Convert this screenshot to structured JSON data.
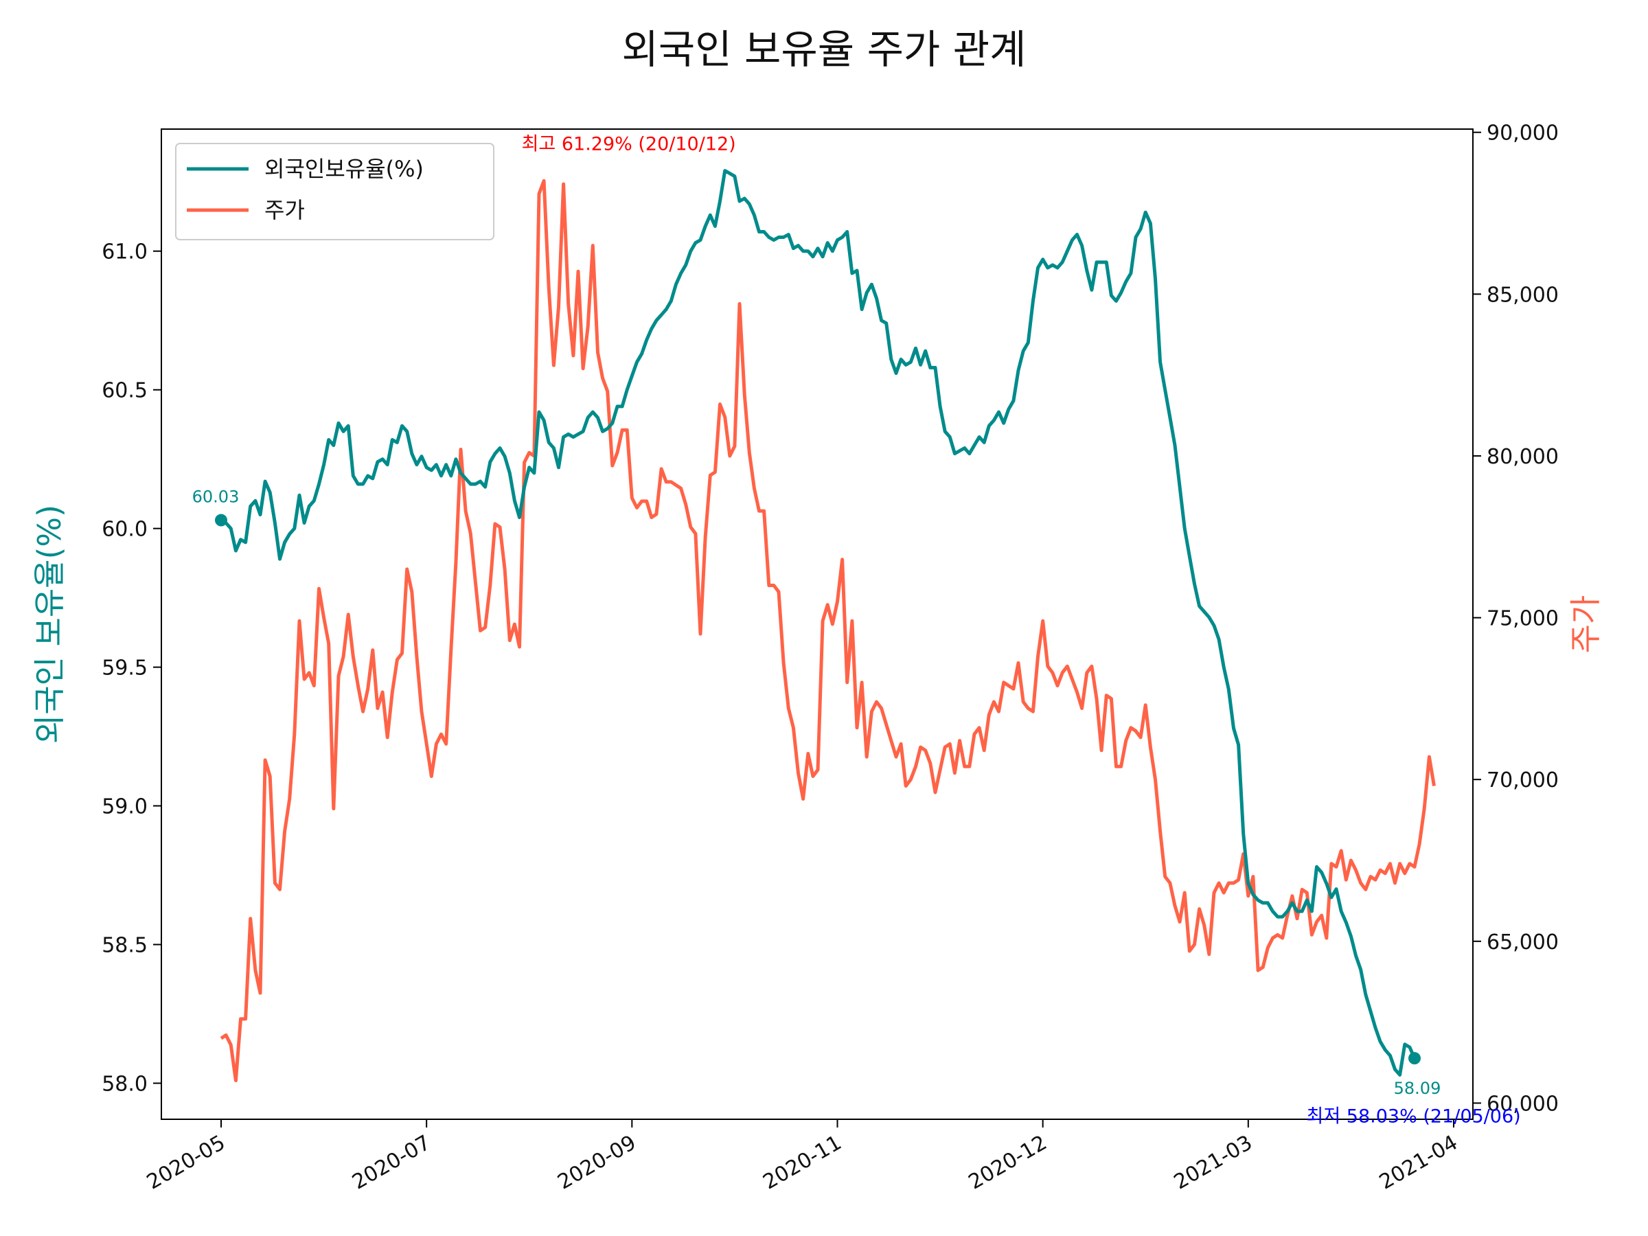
{
  "chart_data": {
    "type": "line",
    "title": "외국인 보유율 주가 관계",
    "xlabel": "",
    "ylabel_left": "외국인 보유율(%)",
    "ylabel_right": "주가",
    "x_tick_labels": [
      "2020-05",
      "2020-07",
      "2020-09",
      "2020-11",
      "2020-12",
      "2021-03",
      "2021-04"
    ],
    "y_left_ticks": [
      "58.0",
      "58.5",
      "59.0",
      "59.5",
      "60.0",
      "60.5",
      "61.0"
    ],
    "y_right_ticks": [
      "60,000",
      "65,000",
      "70,000",
      "75,000",
      "80,000",
      "85,000",
      "90,000"
    ],
    "ylim_left": [
      57.87,
      61.44
    ],
    "ylim_right": [
      59500,
      90100
    ],
    "legend_position": "top-left",
    "series": [
      {
        "name": "외국인보유율(%)",
        "axis": "left",
        "color": "#008B8B",
        "values": [
          60.03,
          60.02,
          60.0,
          59.92,
          59.96,
          59.95,
          60.08,
          60.1,
          60.05,
          60.17,
          60.13,
          60.02,
          59.89,
          59.95,
          59.98,
          60.0,
          60.12,
          60.02,
          60.08,
          60.1,
          60.16,
          60.23,
          60.32,
          60.3,
          60.38,
          60.35,
          60.37,
          60.19,
          60.16,
          60.16,
          60.19,
          60.18,
          60.24,
          60.25,
          60.23,
          60.32,
          60.31,
          60.37,
          60.35,
          60.27,
          60.23,
          60.26,
          60.22,
          60.21,
          60.23,
          60.19,
          60.23,
          60.19,
          60.25,
          60.2,
          60.18,
          60.16,
          60.16,
          60.17,
          60.15,
          60.24,
          60.27,
          60.29,
          60.26,
          60.2,
          60.1,
          60.04,
          60.15,
          60.22,
          60.2,
          60.42,
          60.39,
          60.31,
          60.29,
          60.22,
          60.33,
          60.34,
          60.33,
          60.34,
          60.35,
          60.4,
          60.42,
          60.4,
          60.35,
          60.36,
          60.38,
          60.44,
          60.44,
          60.5,
          60.55,
          60.6,
          60.63,
          60.68,
          60.72,
          60.75,
          60.77,
          60.79,
          60.82,
          60.88,
          60.92,
          60.95,
          61.0,
          61.03,
          61.04,
          61.09,
          61.13,
          61.09,
          61.18,
          61.29,
          61.28,
          61.27,
          61.18,
          61.19,
          61.17,
          61.13,
          61.07,
          61.07,
          61.05,
          61.04,
          61.05,
          61.05,
          61.06,
          61.01,
          61.02,
          61.0,
          61.0,
          60.98,
          61.01,
          60.98,
          61.03,
          61.0,
          61.04,
          61.05,
          61.07,
          60.92,
          60.93,
          60.79,
          60.85,
          60.88,
          60.83,
          60.75,
          60.74,
          60.61,
          60.56,
          60.61,
          60.59,
          60.6,
          60.65,
          60.59,
          60.64,
          60.58,
          60.58,
          60.44,
          60.35,
          60.33,
          60.27,
          60.28,
          60.29,
          60.27,
          60.3,
          60.33,
          60.31,
          60.37,
          60.39,
          60.42,
          60.38,
          60.43,
          60.46,
          60.57,
          60.64,
          60.67,
          60.82,
          60.94,
          60.97,
          60.94,
          60.95,
          60.94,
          60.96,
          61.0,
          61.04,
          61.06,
          61.02,
          60.93,
          60.86,
          60.96,
          60.96,
          60.96,
          60.84,
          60.82,
          60.85,
          60.89,
          60.92,
          61.05,
          61.08,
          61.14,
          61.1,
          60.9,
          60.6,
          60.5,
          60.4,
          60.3,
          60.15,
          60.0,
          59.9,
          59.8,
          59.72,
          59.7,
          59.68,
          59.65,
          59.6,
          59.5,
          59.42,
          59.28,
          59.22,
          58.9,
          58.72,
          58.68,
          58.66,
          58.65,
          58.65,
          58.62,
          58.6,
          58.6,
          58.62,
          58.65,
          58.62,
          58.62,
          58.66,
          58.62,
          58.78,
          58.76,
          58.72,
          58.67,
          58.7,
          58.62,
          58.58,
          58.53,
          58.46,
          58.41,
          58.32,
          58.26,
          58.2,
          58.15,
          58.12,
          58.1,
          58.05,
          58.03,
          58.14,
          58.13,
          58.09
        ]
      },
      {
        "name": "주가",
        "axis": "right",
        "color": "#FF6347",
        "values": [
          62000,
          62100,
          61800,
          60700,
          62600,
          62600,
          65700,
          64100,
          63400,
          70600,
          70100,
          66800,
          66600,
          68400,
          69400,
          71400,
          74900,
          73100,
          73300,
          72900,
          75900,
          75000,
          74200,
          69100,
          73200,
          73800,
          75100,
          73800,
          72900,
          72100,
          72800,
          74000,
          72200,
          72700,
          71300,
          72700,
          73700,
          73900,
          76500,
          75800,
          73800,
          72100,
          71100,
          70100,
          71100,
          71400,
          71100,
          74000,
          76700,
          80200,
          78300,
          77600,
          76100,
          74600,
          74700,
          76000,
          77900,
          77800,
          76500,
          74300,
          74800,
          74100,
          79800,
          80100,
          80000,
          88100,
          88500,
          85200,
          82800,
          84600,
          88400,
          84700,
          83100,
          85700,
          82700,
          84000,
          86500,
          83200,
          82400,
          82000,
          79700,
          80100,
          80800,
          80800,
          78700,
          78400,
          78600,
          78600,
          78100,
          78200,
          79600,
          79200,
          79200,
          79100,
          79000,
          78500,
          77800,
          77600,
          74500,
          77500,
          79400,
          79500,
          81600,
          81200,
          80000,
          80300,
          84700,
          81900,
          80100,
          79000,
          78300,
          78300,
          76000,
          76000,
          75800,
          73600,
          72200,
          71600,
          70200,
          69400,
          70800,
          70100,
          70300,
          74900,
          75400,
          74800,
          75500,
          76800,
          73000,
          74900,
          71600,
          73000,
          70700,
          72100,
          72400,
          72200,
          71700,
          71200,
          70700,
          71100,
          69800,
          70000,
          70400,
          71000,
          70900,
          70500,
          69600,
          70300,
          71000,
          71100,
          70200,
          71200,
          70400,
          70400,
          71400,
          71600,
          70900,
          72000,
          72400,
          72100,
          73000,
          72900,
          72800,
          73600,
          72400,
          72200,
          72100,
          73800,
          74900,
          73500,
          73300,
          72900,
          73300,
          73500,
          73100,
          72700,
          72200,
          73300,
          73500,
          72500,
          70900,
          72600,
          72500,
          70400,
          70400,
          71200,
          71600,
          71500,
          71300,
          72300,
          71000,
          70000,
          68400,
          67000,
          66800,
          66100,
          65600,
          66500,
          64700,
          64900,
          66000,
          65500,
          64600,
          66500,
          66800,
          66500,
          66800,
          66800,
          66900,
          67700,
          66400,
          67000,
          64100,
          64200,
          64800,
          65100,
          65200,
          65100,
          65800,
          66400,
          65700,
          66600,
          66500,
          65200,
          65600,
          65800,
          65100,
          67400,
          67300,
          67800,
          66900,
          67500,
          67200,
          66800,
          66600,
          67000,
          66900,
          67200,
          67100,
          67400,
          66800,
          67400,
          67100,
          67400,
          67300,
          68000,
          69100,
          70700,
          69800
        ]
      }
    ],
    "annotations": {
      "max_label": "최고 61.29% (20/10/12)",
      "min_label": "최저 58.03% (21/05/06)",
      "start_value_label": "60.03",
      "end_value_label": "58.09",
      "max_color": "#FF0000",
      "min_color": "#0000FF"
    }
  }
}
